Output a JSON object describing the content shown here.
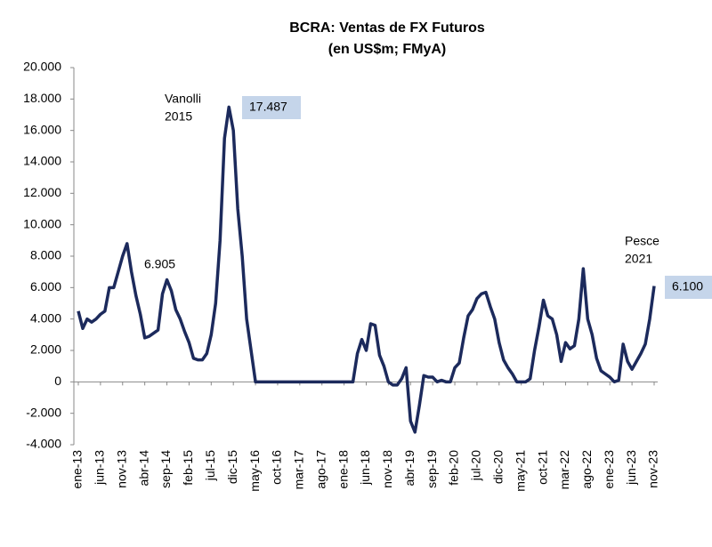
{
  "chart_data": {
    "type": "line",
    "title": "BCRA: Ventas de FX Futuros",
    "subtitle": "(en US$m; FMyA)",
    "categories": [
      "ene-13",
      null,
      null,
      null,
      null,
      "jun-13",
      null,
      null,
      null,
      null,
      "nov-13",
      null,
      null,
      null,
      null,
      "abr-14",
      null,
      null,
      null,
      null,
      "sep-14",
      null,
      null,
      null,
      null,
      "feb-15",
      null,
      null,
      null,
      null,
      "jul-15",
      null,
      null,
      null,
      null,
      "dic-15",
      null,
      null,
      null,
      null,
      "may-16",
      null,
      null,
      null,
      null,
      "oct-16",
      null,
      null,
      null,
      null,
      "mar-17",
      null,
      null,
      null,
      null,
      "ago-17",
      null,
      null,
      null,
      null,
      "ene-18",
      null,
      null,
      null,
      null,
      "jun-18",
      null,
      null,
      null,
      null,
      "nov-18",
      null,
      null,
      null,
      null,
      "abr-19",
      null,
      null,
      null,
      null,
      "sep-19",
      null,
      null,
      null,
      null,
      "feb-20",
      null,
      null,
      null,
      null,
      "jul-20",
      null,
      null,
      null,
      null,
      "dic-20",
      null,
      null,
      null,
      null,
      "may-21",
      null,
      null,
      null,
      null,
      "oct-21",
      null,
      null,
      null,
      null,
      "mar-22",
      null,
      null,
      null,
      null,
      "ago-22",
      null,
      null,
      null,
      null,
      "ene-23",
      null,
      null,
      null,
      null,
      "jun-23",
      null,
      null,
      null,
      null,
      "nov-23"
    ],
    "series": [
      {
        "name": "Ventas de FX Futuros",
        "color": "#1c2a5c",
        "values": [
          4500,
          3400,
          4000,
          3800,
          4000,
          4300,
          4500,
          6000,
          6000,
          7000,
          8000,
          8800,
          7000,
          5500,
          4300,
          2800,
          2900,
          3100,
          3300,
          5600,
          6500,
          5800,
          4600,
          4000,
          3200,
          2500,
          1500,
          1400,
          1400,
          1800,
          3000,
          5000,
          9000,
          15500,
          17487,
          16000,
          11000,
          8000,
          4000,
          2000,
          0,
          0,
          0,
          0,
          0,
          0,
          0,
          0,
          0,
          0,
          0,
          0,
          0,
          0,
          0,
          0,
          0,
          0,
          0,
          0,
          0,
          0,
          0,
          1800,
          2700,
          2000,
          3700,
          3600,
          1700,
          1000,
          0,
          -200,
          -200,
          200,
          900,
          -2500,
          -3200,
          -1500,
          400,
          300,
          300,
          0,
          100,
          0,
          0,
          900,
          1200,
          2800,
          4200,
          4600,
          5300,
          5600,
          5700,
          4800,
          4000,
          2500,
          1400,
          900,
          500,
          0,
          0,
          0,
          200,
          2000,
          3500,
          5200,
          4200,
          4000,
          3000,
          1300,
          2500,
          2100,
          2300,
          4000,
          7200,
          4000,
          3000,
          1500,
          700,
          500,
          300,
          0,
          100,
          2400,
          1300,
          800,
          1300,
          1800,
          2400,
          4000,
          6100
        ]
      }
    ],
    "ylim": [
      -4000,
      20000
    ],
    "yticks": [
      {
        "value": -4000,
        "label": "-4.000"
      },
      {
        "value": -2000,
        "label": "-2.000"
      },
      0,
      {
        "value": 2000,
        "label": "2.000"
      },
      {
        "value": 4000,
        "label": "4.000"
      },
      {
        "value": 6000,
        "label": "6.000"
      },
      {
        "value": 8000,
        "label": "8.000"
      },
      {
        "value": 10000,
        "label": "10.000"
      },
      {
        "value": 12000,
        "label": "12.000"
      },
      {
        "value": 14000,
        "label": "14.000"
      },
      {
        "value": 16000,
        "label": "16.000"
      },
      {
        "value": 18000,
        "label": "18.000"
      },
      {
        "value": 20000,
        "label": "20.000"
      }
    ],
    "annotations": [
      {
        "lines": [
          "Vanolli",
          "2015"
        ]
      },
      {
        "text": "17.487",
        "highlight": "#c5d5ea"
      },
      {
        "text": "6.905"
      },
      {
        "lines": [
          "Pesce",
          "2021"
        ]
      },
      {
        "text": "6.100",
        "highlight": "#c5d5ea"
      }
    ]
  }
}
